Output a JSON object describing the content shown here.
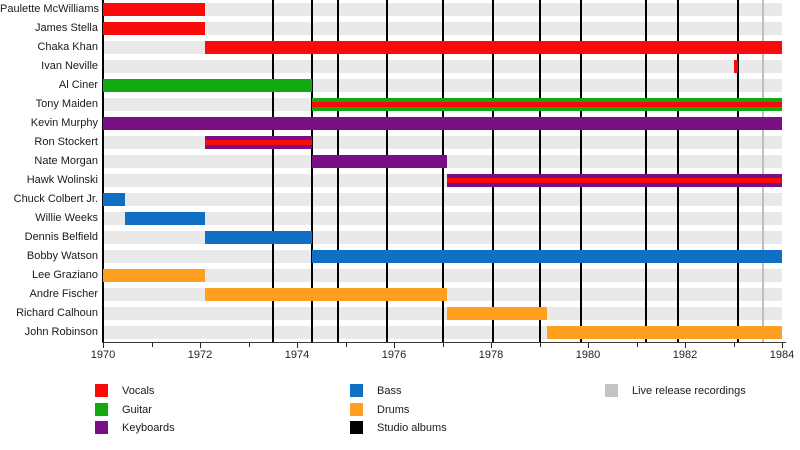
{
  "chart_data": {
    "type": "gantt",
    "subtype": "band-members-timeline",
    "x_axis": {
      "min": 1970,
      "max": 1984,
      "labeled_tick_years": [
        1970,
        1972,
        1974,
        1976,
        1978,
        1980,
        1982,
        1984
      ],
      "minor_tick_years": [
        1971,
        1973,
        1975,
        1977,
        1979,
        1981,
        1983
      ],
      "grid": "off"
    },
    "colors": {
      "vocals": "#fa0a0a",
      "guitar": "#12a812",
      "keyboards": "#7a0f85",
      "bass": "#0f6fc5",
      "drums": "#ff9e1f",
      "studio_albums": "#000000",
      "live_release": "#c3c3c3"
    },
    "rows": [
      {
        "label": "Paulette McWilliams",
        "bars": [
          {
            "start": 1970.0,
            "end": 1972.1,
            "color": "vocals"
          }
        ]
      },
      {
        "label": "James Stella",
        "bars": [
          {
            "start": 1970.0,
            "end": 1972.1,
            "color": "vocals"
          }
        ]
      },
      {
        "label": "Chaka Khan",
        "bars": [
          {
            "start": 1972.1,
            "end": 1984.0,
            "color": "vocals"
          }
        ]
      },
      {
        "label": "Ivan Neville",
        "bars": [
          {
            "start": 1983.0,
            "end": 1983.1,
            "color": "vocals"
          }
        ]
      },
      {
        "label": "Al Ciner",
        "bars": [
          {
            "start": 1970.0,
            "end": 1974.3,
            "color": "guitar"
          }
        ]
      },
      {
        "label": "Tony Maiden",
        "bars": [
          {
            "start": 1974.3,
            "end": 1984.0,
            "color": "guitar",
            "stripe_color": "vocals"
          }
        ]
      },
      {
        "label": "Kevin Murphy",
        "bars": [
          {
            "start": 1970.0,
            "end": 1984.0,
            "color": "keyboards"
          }
        ]
      },
      {
        "label": "Ron Stockert",
        "bars": [
          {
            "start": 1972.1,
            "end": 1974.3,
            "color": "keyboards",
            "stripe_color": "vocals"
          }
        ]
      },
      {
        "label": "Nate Morgan",
        "bars": [
          {
            "start": 1974.3,
            "end": 1977.1,
            "color": "keyboards"
          }
        ]
      },
      {
        "label": "Hawk Wolinski",
        "bars": [
          {
            "start": 1977.1,
            "end": 1984.0,
            "color": "keyboards",
            "stripe_color": "vocals"
          }
        ]
      },
      {
        "label": "Chuck Colbert Jr.",
        "bars": [
          {
            "start": 1970.0,
            "end": 1970.45,
            "color": "bass"
          }
        ]
      },
      {
        "label": "Willie Weeks",
        "bars": [
          {
            "start": 1970.45,
            "end": 1972.1,
            "color": "bass"
          }
        ]
      },
      {
        "label": "Dennis Belfield",
        "bars": [
          {
            "start": 1972.1,
            "end": 1974.3,
            "color": "bass"
          }
        ]
      },
      {
        "label": "Bobby Watson",
        "bars": [
          {
            "start": 1974.3,
            "end": 1984.0,
            "color": "bass"
          }
        ]
      },
      {
        "label": "Lee Graziano",
        "bars": [
          {
            "start": 1970.0,
            "end": 1972.1,
            "color": "drums"
          }
        ]
      },
      {
        "label": "Andre Fischer",
        "bars": [
          {
            "start": 1972.1,
            "end": 1977.1,
            "color": "drums"
          }
        ]
      },
      {
        "label": "Richard Calhoun",
        "bars": [
          {
            "start": 1977.1,
            "end": 1979.15,
            "color": "drums"
          }
        ]
      },
      {
        "label": "John Robinson",
        "bars": [
          {
            "start": 1979.15,
            "end": 1984.0,
            "color": "drums"
          }
        ]
      }
    ],
    "event_lines": {
      "studio_albums": [
        1973.5,
        1974.3,
        1974.85,
        1975.85,
        1977.0,
        1978.05,
        1979.0,
        1979.85,
        1981.2,
        1981.85,
        1983.1
      ],
      "live_release_recordings": [
        1983.6
      ]
    },
    "legend": {
      "columns": [
        [
          {
            "label": "Vocals",
            "color": "vocals"
          },
          {
            "label": "Guitar",
            "color": "guitar"
          },
          {
            "label": "Keyboards",
            "color": "keyboards"
          }
        ],
        [
          {
            "label": "Bass",
            "color": "bass"
          },
          {
            "label": "Drums",
            "color": "drums"
          },
          {
            "label": "Studio albums",
            "color": "studio_albums"
          }
        ],
        [
          {
            "label": "Live release recordings",
            "color": "live_release"
          }
        ]
      ],
      "position": "bottom"
    }
  }
}
